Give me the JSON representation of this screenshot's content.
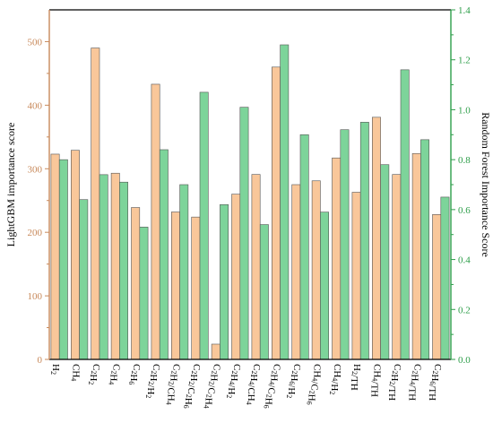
{
  "chart_data": {
    "type": "bar",
    "categories": [
      [
        "H",
        {
          "sub": "2"
        }
      ],
      [
        "CH",
        {
          "sub": "4"
        }
      ],
      [
        "C",
        {
          "sub": "2"
        },
        "H",
        {
          "sub": "2"
        }
      ],
      [
        "C",
        {
          "sub": "2"
        },
        "H",
        {
          "sub": "4"
        }
      ],
      [
        "C",
        {
          "sub": "2"
        },
        "H",
        {
          "sub": "6"
        }
      ],
      [
        "C",
        {
          "sub": "2"
        },
        "H",
        {
          "sub": "2"
        },
        "/H",
        {
          "sub": "2"
        }
      ],
      [
        "C",
        {
          "sub": "2"
        },
        "H",
        {
          "sub": "2"
        },
        "/CH",
        {
          "sub": "4"
        }
      ],
      [
        "C",
        {
          "sub": "2"
        },
        "H",
        {
          "sub": "2"
        },
        "/C",
        {
          "sub": "2"
        },
        "H",
        {
          "sub": "6"
        }
      ],
      [
        "C",
        {
          "sub": "2"
        },
        "H",
        {
          "sub": "2"
        },
        "/C",
        {
          "sub": "2"
        },
        "H",
        {
          "sub": "4"
        }
      ],
      [
        "C",
        {
          "sub": "2"
        },
        "H",
        {
          "sub": "4"
        },
        "/H",
        {
          "sub": "2"
        }
      ],
      [
        "C",
        {
          "sub": "2"
        },
        "H",
        {
          "sub": "4"
        },
        "/CH",
        {
          "sub": "4"
        }
      ],
      [
        "C",
        {
          "sub": "2"
        },
        "H",
        {
          "sub": "4"
        },
        "/C",
        {
          "sub": "2"
        },
        "H",
        {
          "sub": "6"
        }
      ],
      [
        "C",
        {
          "sub": "2"
        },
        "H",
        {
          "sub": "6"
        },
        "/H",
        {
          "sub": "2"
        }
      ],
      [
        "CH",
        {
          "sub": "4"
        },
        "/C",
        {
          "sub": "2"
        },
        "H",
        {
          "sub": "6"
        }
      ],
      [
        "CH",
        {
          "sub": "4"
        },
        "/H",
        {
          "sub": "2"
        }
      ],
      [
        "H",
        {
          "sub": "2"
        },
        "/TH"
      ],
      [
        "CH",
        {
          "sub": "4"
        },
        "/TH"
      ],
      [
        "C",
        {
          "sub": "2"
        },
        "H",
        {
          "sub": "2"
        },
        "/TH"
      ],
      [
        "C",
        {
          "sub": "2"
        },
        "H",
        {
          "sub": "4"
        },
        "/TH"
      ],
      [
        "C",
        {
          "sub": "2"
        },
        "H",
        {
          "sub": "6"
        },
        "/TH"
      ]
    ],
    "series": [
      {
        "name": "LightGBM",
        "axis": "left",
        "color": "#f9c79a",
        "values": [
          323,
          329,
          490,
          293,
          239,
          433,
          232,
          224,
          24,
          260,
          291,
          460,
          275,
          281,
          317,
          263,
          381,
          291,
          324,
          228
        ]
      },
      {
        "name": "Random Forest",
        "axis": "right",
        "color": "#7dd49a",
        "values": [
          0.8,
          0.64,
          0.74,
          0.71,
          0.53,
          0.84,
          0.7,
          1.07,
          0.62,
          1.01,
          0.54,
          1.26,
          0.9,
          0.59,
          0.92,
          0.95,
          0.78,
          1.16,
          0.88,
          0.65
        ]
      }
    ],
    "ylabel": "LightGBM importance score",
    "y2label": "Random Forest Importance Score",
    "ylim": [
      0,
      550
    ],
    "y2lim": [
      0,
      1.4
    ],
    "yticks": [
      "0",
      "100",
      "200",
      "300",
      "400",
      "500"
    ],
    "y2ticks": [
      "0.0",
      "0.2",
      "0.4",
      "0.6",
      "0.8",
      "1.0",
      "1.2",
      "1.4"
    ],
    "left_axis_color": "#c8895a",
    "right_axis_color": "#2e9e4a",
    "grid": false,
    "legend": "none"
  }
}
